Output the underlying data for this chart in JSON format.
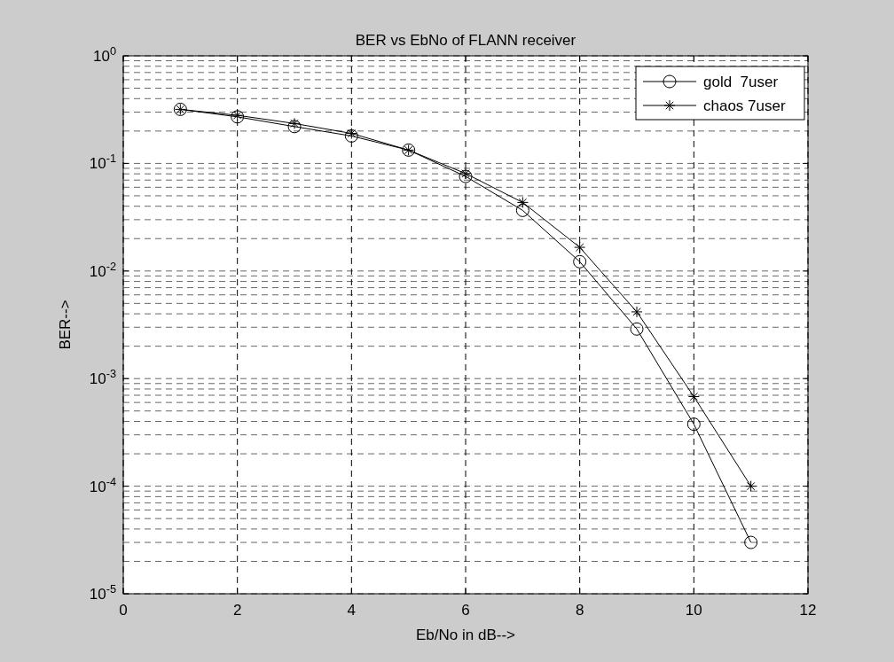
{
  "chart_data": {
    "type": "line",
    "title": "BER vs EbNo of FLANN receiver",
    "xlabel": "Eb/No in dB-->",
    "ylabel": "BER-->",
    "x": [
      1,
      2,
      3,
      4,
      5,
      6,
      7,
      8,
      9,
      10,
      11
    ],
    "series": [
      {
        "name": "gold  7user",
        "color": "#000000",
        "marker": "circle",
        "values": [
          0.318,
          0.271,
          0.22,
          0.18,
          0.133,
          0.0757,
          0.0366,
          0.0122,
          0.00289,
          0.000377,
          3e-05
        ]
      },
      {
        "name": "chaos 7user",
        "color": "#000000",
        "marker": "cross",
        "values": [
          0.318,
          0.28,
          0.235,
          0.19,
          0.133,
          0.0805,
          0.0434,
          0.0166,
          0.00417,
          0.00068,
          0.0001
        ]
      }
    ],
    "xlim": [
      0,
      12
    ],
    "xticks": [
      0,
      2,
      4,
      6,
      8,
      10,
      12
    ],
    "ylim": [
      1e-05,
      1
    ],
    "yticks": [
      {
        "value": 1e-05,
        "label": "10$^{-5}$"
      },
      {
        "value": 0.0001,
        "label": "10$^{-4}$"
      },
      {
        "value": 0.001,
        "label": "10$^{-3}$"
      },
      {
        "value": 0.01,
        "label": "10$^{-2}$"
      },
      {
        "value": 0.1,
        "label": "10$^{-1}$"
      },
      {
        "value": 1,
        "label": "10$^{0}$"
      }
    ],
    "log": "y",
    "grid": true,
    "legend": "top right",
    "line_style": "solid"
  }
}
